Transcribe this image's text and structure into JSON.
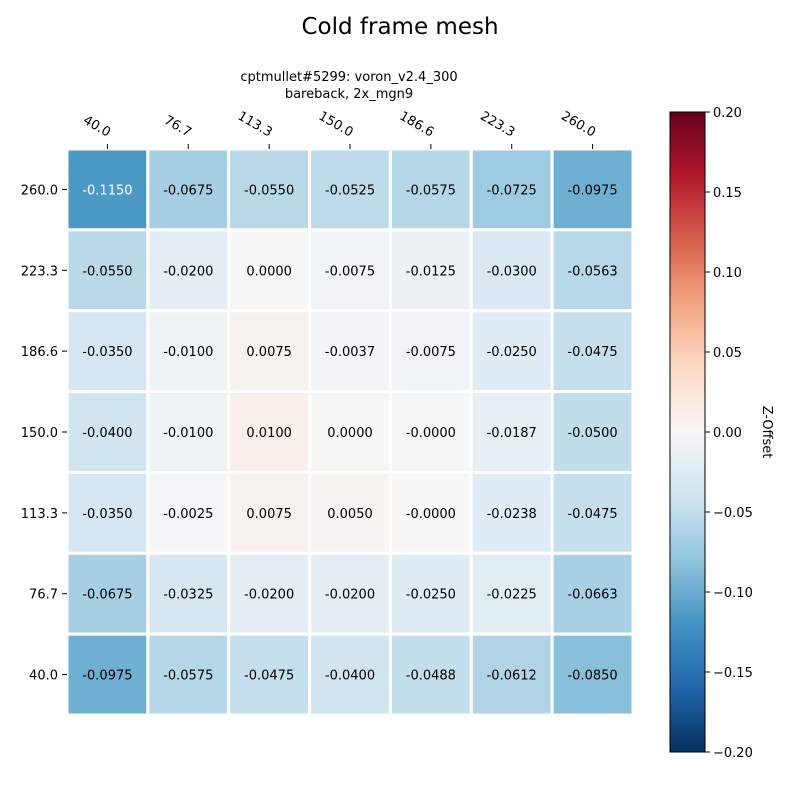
{
  "chart_data": {
    "type": "heatmap",
    "title": "Cold frame mesh",
    "subtitle_lines": [
      "cptmullet#5299: voron_v2.4_300",
      "bareback, 2x_mgn9"
    ],
    "x_ticks": [
      "40.0",
      "76.7",
      "113.3",
      "150.0",
      "186.6",
      "223.3",
      "260.0"
    ],
    "y_ticks": [
      "260.0",
      "223.3",
      "186.6",
      "150.0",
      "113.3",
      "76.7",
      "40.0"
    ],
    "values": [
      [
        -0.115,
        -0.0675,
        -0.055,
        -0.0525,
        -0.0575,
        -0.0725,
        -0.0975
      ],
      [
        -0.055,
        -0.02,
        0.0,
        -0.0075,
        -0.0125,
        -0.03,
        -0.0563
      ],
      [
        -0.035,
        -0.01,
        0.0075,
        -0.0037,
        -0.0075,
        -0.025,
        -0.0475
      ],
      [
        -0.04,
        -0.01,
        0.01,
        0.0,
        -0.0,
        -0.0187,
        -0.05
      ],
      [
        -0.035,
        -0.0025,
        0.0075,
        0.005,
        -0.0,
        -0.0238,
        -0.0475
      ],
      [
        -0.0675,
        -0.0325,
        -0.02,
        -0.02,
        -0.025,
        -0.0225,
        -0.0663
      ],
      [
        -0.0975,
        -0.0575,
        -0.0475,
        -0.04,
        -0.0488,
        -0.0612,
        -0.085
      ]
    ],
    "cell_labels": [
      [
        "-0.1150",
        "-0.0675",
        "-0.0550",
        "-0.0525",
        "-0.0575",
        "-0.0725",
        "-0.0975"
      ],
      [
        "-0.0550",
        "-0.0200",
        "0.0000",
        "-0.0075",
        "-0.0125",
        "-0.0300",
        "-0.0563"
      ],
      [
        "-0.0350",
        "-0.0100",
        "0.0075",
        "-0.0037",
        "-0.0075",
        "-0.0250",
        "-0.0475"
      ],
      [
        "-0.0400",
        "-0.0100",
        "0.0100",
        "0.0000",
        "-0.0000",
        "-0.0187",
        "-0.0500"
      ],
      [
        "-0.0350",
        "-0.0025",
        "0.0075",
        "0.0050",
        "-0.0000",
        "-0.0238",
        "-0.0475"
      ],
      [
        "-0.0675",
        "-0.0325",
        "-0.0200",
        "-0.0200",
        "-0.0250",
        "-0.0225",
        "-0.0663"
      ],
      [
        "-0.0975",
        "-0.0575",
        "-0.0475",
        "-0.0400",
        "-0.0488",
        "-0.0612",
        "-0.0850"
      ]
    ],
    "colorbar": {
      "label": "Z-Offset",
      "range": [
        -0.2,
        0.2
      ],
      "ticks": [
        0.2,
        0.15,
        0.1,
        0.05,
        0.0,
        -0.05,
        -0.1,
        -0.15,
        -0.2
      ],
      "tick_labels": [
        "0.20",
        "0.15",
        "0.10",
        "0.05",
        "0.00",
        "−0.05",
        "−0.10",
        "−0.15",
        "−0.20"
      ],
      "colormap": "RdBu_r",
      "stops": [
        "#053061",
        "#2166ac",
        "#4393c3",
        "#92c5de",
        "#d1e5f0",
        "#f7f7f7",
        "#fddbc7",
        "#f4a582",
        "#d6604d",
        "#b2182b",
        "#67001f"
      ]
    },
    "x_axis_position": "top",
    "grid": false
  }
}
